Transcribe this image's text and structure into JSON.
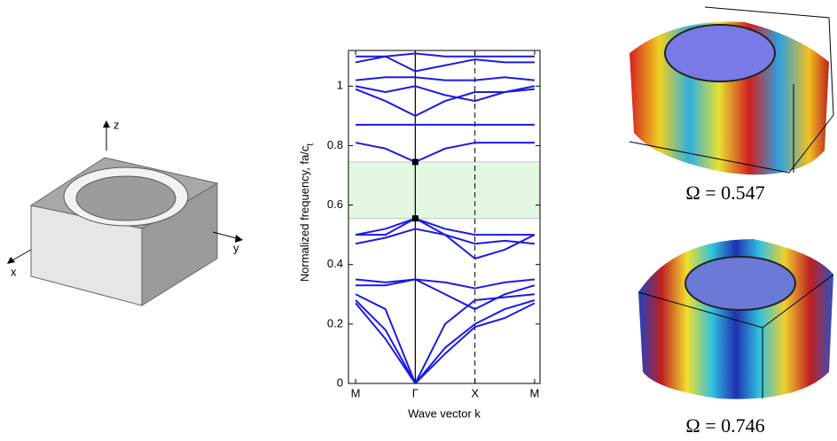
{
  "chart_data": {
    "type": "line",
    "xlabel": "Wave vector k",
    "ylabel": "Normalized frequency, fa/c",
    "ylabel_subscript": "t",
    "color": "#1a1ae6",
    "x": [
      0,
      0.5,
      1,
      1.5,
      2,
      2.5,
      3
    ],
    "xlim": [
      -0.12,
      3.09
    ],
    "ylim": [
      0,
      1.12
    ],
    "xticks": [
      {
        "value": 0,
        "label": "M"
      },
      {
        "value": 1,
        "label": "Γ"
      },
      {
        "value": 2,
        "label": "X"
      },
      {
        "value": 3,
        "label": "M"
      }
    ],
    "yticks": [
      0,
      0.2,
      0.4,
      0.6,
      0.8,
      1
    ],
    "band_gap": [
      0.555,
      0.745
    ],
    "band_gap_color": "#e3f7e3",
    "marked_points": [
      0.555,
      0.745
    ],
    "series": [
      {
        "values": [
          0.27,
          0.15,
          0,
          0.1,
          0.19,
          0.22,
          0.27
        ]
      },
      {
        "values": [
          0.28,
          0.18,
          0,
          0.12,
          0.2,
          0.25,
          0.28
        ]
      },
      {
        "values": [
          0.3,
          0.25,
          0,
          0.2,
          0.28,
          0.29,
          0.3
        ]
      },
      {
        "values": [
          0.33,
          0.33,
          0.35,
          0.3,
          0.25,
          0.3,
          0.33
        ]
      },
      {
        "values": [
          0.35,
          0.34,
          0.35,
          0.34,
          0.32,
          0.34,
          0.35
        ]
      },
      {
        "values": [
          0.47,
          0.49,
          0.52,
          0.5,
          0.47,
          0.48,
          0.47
        ]
      },
      {
        "values": [
          0.5,
          0.52,
          0.555,
          0.5,
          0.42,
          0.45,
          0.5
        ]
      },
      {
        "values": [
          0.5,
          0.5,
          0.555,
          0.52,
          0.5,
          0.5,
          0.5
        ]
      },
      {
        "values": [
          0.81,
          0.79,
          0.745,
          0.79,
          0.81,
          0.81,
          0.81
        ]
      },
      {
        "values": [
          0.87,
          0.87,
          0.87,
          0.87,
          0.87,
          0.87,
          0.87
        ]
      },
      {
        "values": [
          0.99,
          0.95,
          0.9,
          0.95,
          0.98,
          0.98,
          0.99
        ]
      },
      {
        "values": [
          1.0,
          0.98,
          1.0,
          0.97,
          0.95,
          0.98,
          1.0
        ]
      },
      {
        "values": [
          1.02,
          1.03,
          1.03,
          1.02,
          1.02,
          1.03,
          1.02
        ]
      },
      {
        "values": [
          1.08,
          1.1,
          1.05,
          1.07,
          1.09,
          1.08,
          1.08
        ]
      },
      {
        "values": [
          1.1,
          1.1,
          1.11,
          1.1,
          1.1,
          1.1,
          1.1
        ]
      }
    ]
  },
  "unit_cell": {
    "axes": {
      "z": "z",
      "y": "y",
      "x": "x"
    }
  },
  "modes": [
    {
      "label": "Ω = 0.547"
    },
    {
      "label": "Ω = 0.746"
    }
  ]
}
